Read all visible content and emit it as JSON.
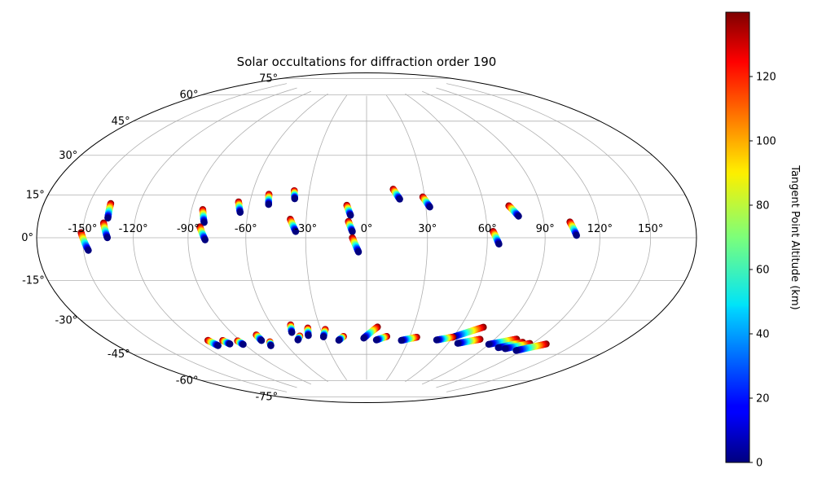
{
  "chart_data": {
    "type": "scatter",
    "projection": "hammer",
    "title": "Solar occultations for diffraction order 190",
    "lon_ticks": [
      "-150°",
      "-120°",
      "-90°",
      "-60°",
      "-30°",
      "0°",
      "30°",
      "60°",
      "90°",
      "120°",
      "150°"
    ],
    "lon_tick_values": [
      -150,
      -120,
      -90,
      -60,
      -30,
      0,
      30,
      60,
      90,
      120,
      150
    ],
    "lat_ticks": [
      "-75°",
      "-60°",
      "-45°",
      "-30°",
      "-15°",
      "0°",
      "15°",
      "30°",
      "45°",
      "60°",
      "75°"
    ],
    "lat_tick_values": [
      -75,
      -60,
      -45,
      -30,
      -15,
      0,
      15,
      30,
      45,
      60,
      75
    ],
    "grid": true,
    "colormap": "jet",
    "colorbar": {
      "label": "Tangent Point Altitude (km)",
      "min": 0,
      "max": 140,
      "ticks": [
        "0",
        "20",
        "40",
        "60",
        "80",
        "100",
        "120"
      ],
      "tick_values": [
        0,
        20,
        40,
        60,
        80,
        100,
        120
      ]
    },
    "tracks": [
      {
        "start": [
          -151,
          2
        ],
        "end": [
          -147,
          -5
        ]
      },
      {
        "start": [
          -137,
          14
        ],
        "end": [
          -136,
          8
        ]
      },
      {
        "start": [
          -138,
          6
        ],
        "end": [
          -135,
          0
        ]
      },
      {
        "start": [
          -84,
          13
        ],
        "end": [
          -82,
          7
        ]
      },
      {
        "start": [
          -84,
          5
        ],
        "end": [
          -81,
          -1
        ]
      },
      {
        "start": [
          -66,
          17
        ],
        "end": [
          -64,
          12
        ]
      },
      {
        "start": [
          -51,
          21
        ],
        "end": [
          -50,
          16
        ]
      },
      {
        "start": [
          -38,
          23
        ],
        "end": [
          -37,
          19
        ]
      },
      {
        "start": [
          -38,
          9
        ],
        "end": [
          -35,
          3
        ]
      },
      {
        "start": [
          -10,
          16
        ],
        "end": [
          -8,
          11
        ]
      },
      {
        "start": [
          -9,
          8
        ],
        "end": [
          -7,
          3
        ]
      },
      {
        "start": [
          -7,
          0
        ],
        "end": [
          -4,
          -7
        ]
      },
      {
        "start": [
          14,
          24
        ],
        "end": [
          17,
          19
        ]
      },
      {
        "start": [
          29,
          20
        ],
        "end": [
          32,
          15
        ]
      },
      {
        "start": [
          63,
          3
        ],
        "end": [
          66,
          -3
        ]
      },
      {
        "start": [
          73,
          15
        ],
        "end": [
          77,
          10
        ]
      },
      {
        "start": [
          104,
          7
        ],
        "end": [
          107,
          1
        ]
      },
      {
        "start": [
          -112,
          -47
        ],
        "end": [
          -110,
          -50
        ]
      },
      {
        "start": [
          -102,
          -48
        ],
        "end": [
          -100,
          -50
        ]
      },
      {
        "start": [
          -92,
          -49
        ],
        "end": [
          -91,
          -51
        ]
      },
      {
        "start": [
          -75,
          -47
        ],
        "end": [
          -75,
          -50
        ]
      },
      {
        "start": [
          -70,
          -51
        ],
        "end": [
          -72,
          -53
        ]
      },
      {
        "start": [
          -48,
          -43
        ],
        "end": [
          -50,
          -47
        ]
      },
      {
        "start": [
          -46,
          -49
        ],
        "end": [
          -49,
          -51
        ]
      },
      {
        "start": [
          -38,
          -45
        ],
        "end": [
          -40,
          -49
        ]
      },
      {
        "start": [
          -27,
          -46
        ],
        "end": [
          -30,
          -50
        ]
      },
      {
        "start": [
          -16,
          -50
        ],
        "end": [
          -20,
          -52
        ]
      },
      {
        "start": [
          7,
          -45
        ],
        "end": [
          -2,
          -51
        ]
      },
      {
        "start": [
          14,
          -50
        ],
        "end": [
          7,
          -52
        ]
      },
      {
        "start": [
          35,
          -50
        ],
        "end": [
          25,
          -52
        ]
      },
      {
        "start": [
          75,
          -43
        ],
        "end": [
          60,
          -49
        ]
      },
      {
        "start": [
          60,
          -49
        ],
        "end": [
          50,
          -51
        ]
      },
      {
        "start": [
          80,
          -49
        ],
        "end": [
          67,
          -52
        ]
      },
      {
        "start": [
          105,
          -47
        ],
        "end": [
          90,
          -51
        ]
      },
      {
        "start": [
          112,
          -48
        ],
        "end": [
          100,
          -52
        ]
      },
      {
        "start": [
          118,
          -48
        ],
        "end": [
          106,
          -52
        ]
      },
      {
        "start": [
          130,
          -47
        ],
        "end": [
          116,
          -52
        ]
      }
    ]
  }
}
